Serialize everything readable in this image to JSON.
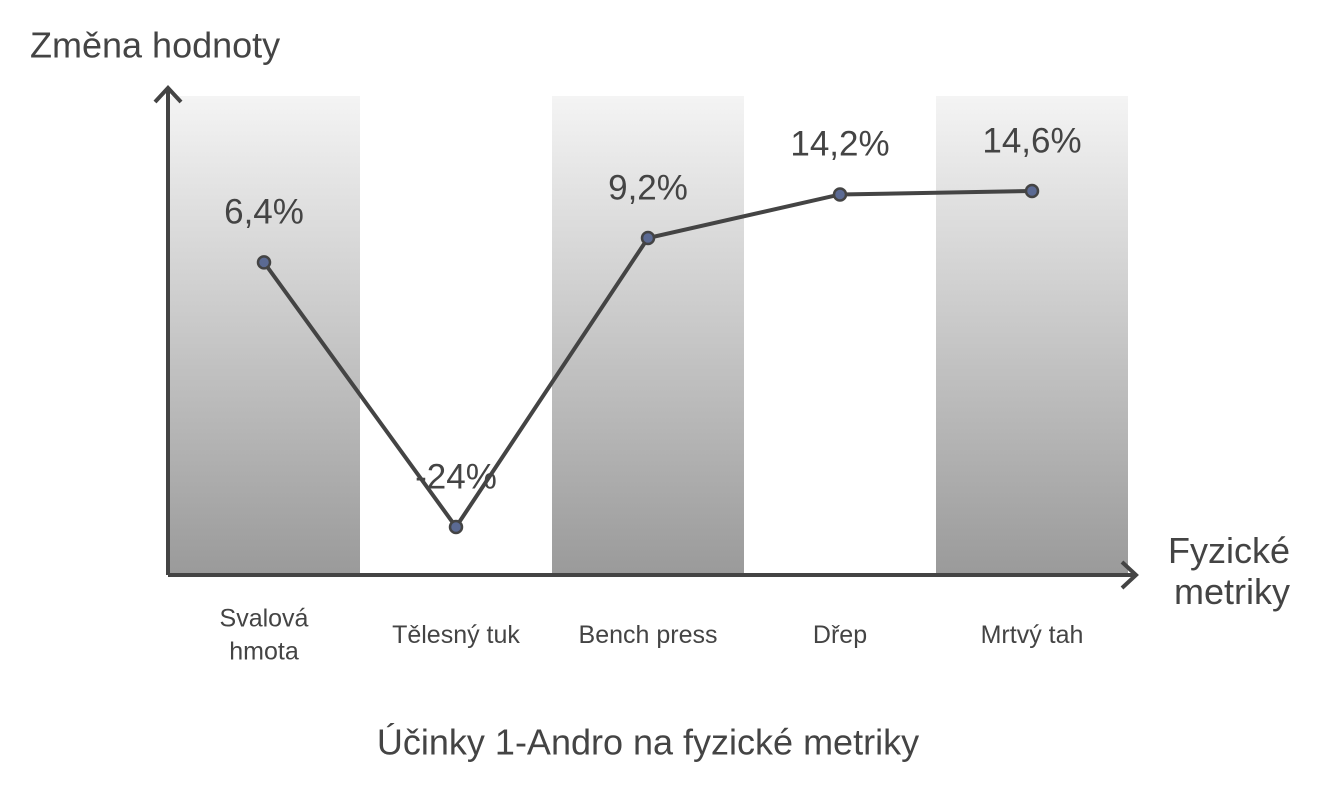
{
  "chart_data": {
    "type": "line",
    "title": "Účinky 1-Andro na fyzické metriky",
    "y_label": "Změna hodnoty",
    "x_label": "Fyzické metriky",
    "categories": [
      "Svalová hmota",
      "Tělesný tuk",
      "Bench press",
      "Dřep",
      "Mrtvý tah"
    ],
    "values": [
      6.4,
      -24,
      9.2,
      14.2,
      14.6
    ],
    "value_labels": [
      "6,4%",
      "-24%",
      "9,2%",
      "14,2%",
      "14,6%"
    ],
    "color": "#444444",
    "marker_color": "#5b6a93"
  }
}
